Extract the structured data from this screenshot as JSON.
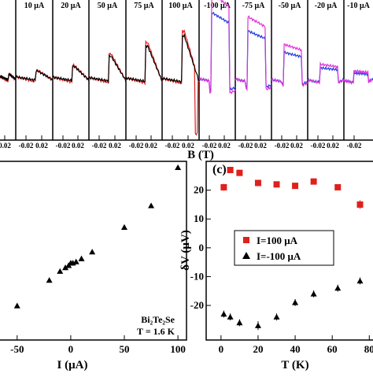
{
  "chart_data": [
    {
      "type": "trace-panels",
      "panels": [
        "10 μA",
        "20 μA",
        "50 μA",
        "75 μA",
        "100 μA",
        "-100 μA",
        "-75 μA",
        "-50 μA",
        "-20 μA",
        "-10 μA"
      ],
      "xticks": [
        0.02,
        -0.02,
        0.02,
        -0.02,
        0.02,
        -0.02,
        0.02,
        -0.02,
        0.02,
        -0.02,
        0.02,
        -0.02,
        0.02,
        -0.02,
        0.02,
        -0.02,
        0.02,
        -0.02,
        0.02,
        -0.02
      ],
      "xlabel": "B (T)"
    },
    {
      "type": "scatter",
      "xlabel": "I (μA)",
      "annotations": [
        "Bi₂Te₂Se",
        "T = 1.6 K"
      ],
      "x": [
        -50,
        -20,
        -10,
        -5,
        -2,
        0,
        2,
        5,
        10,
        20,
        50,
        75,
        100
      ],
      "values": [
        -13.9,
        -5.6,
        -2.7,
        -1.5,
        -0.8,
        0,
        0,
        0.4,
        1.4,
        3.6,
        11.6,
        18.6,
        31
      ],
      "color": "#000000",
      "xlim": [
        -66,
        108
      ],
      "ylim": [
        -25,
        33
      ],
      "xticks": [
        -50,
        0,
        50,
        100
      ]
    },
    {
      "type": "scatter",
      "label": "(c)",
      "xlabel": "T (K)",
      "ylabel": "δV (μV)",
      "x": [
        1.5,
        5,
        10,
        20,
        30,
        40,
        50,
        63,
        75
      ],
      "series": [
        {
          "name": "I=100 μA",
          "color": "#e0201b",
          "marker": "square",
          "values": [
            21,
            27,
            26,
            22.5,
            22,
            21.5,
            23,
            21,
            15
          ],
          "errors": [
            1.2,
            1,
            1,
            1,
            1,
            1,
            1,
            1,
            1.5
          ]
        },
        {
          "name": "I=-100 μA",
          "color": "#000000",
          "marker": "triangle",
          "values": [
            -23,
            -24,
            -26,
            -27,
            -24,
            -19,
            -16,
            -14,
            -11.5
          ],
          "errors": [
            1.2,
            1.2,
            1.2,
            1.5,
            1.2,
            1.2,
            1.2,
            1.2,
            1.2
          ]
        }
      ],
      "xlim": [
        -8,
        82
      ],
      "ylim": [
        -32,
        30
      ],
      "xticks": [
        0,
        20,
        40,
        60,
        80
      ],
      "yticks": [
        20,
        10,
        0,
        -10,
        -20
      ],
      "legend": "center"
    }
  ]
}
